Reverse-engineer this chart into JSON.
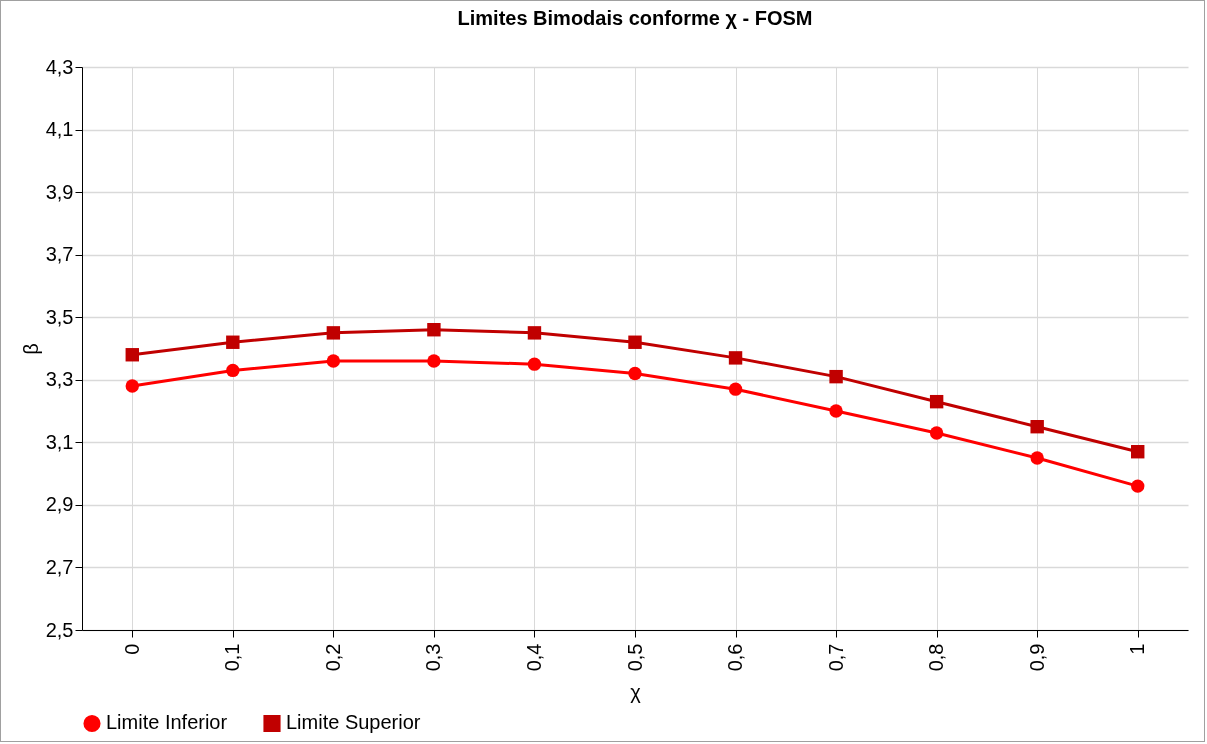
{
  "chart_data": {
    "type": "line",
    "title": "Limites Bimodais conforme χ - FOSM",
    "xlabel": "χ",
    "ylabel": "β",
    "categories": [
      "0",
      "0,1",
      "0,2",
      "0,3",
      "0,4",
      "0,5",
      "0,6",
      "0,7",
      "0,8",
      "0,9",
      "1"
    ],
    "series": [
      {
        "name": "Limite Inferior",
        "color": "#ff0000",
        "marker": "circle",
        "values": [
          3.28,
          3.33,
          3.36,
          3.36,
          3.35,
          3.32,
          3.27,
          3.2,
          3.13,
          3.05,
          2.96
        ]
      },
      {
        "name": "Limite Superior",
        "color": "#c00000",
        "marker": "square",
        "values": [
          3.38,
          3.42,
          3.45,
          3.46,
          3.45,
          3.42,
          3.37,
          3.31,
          3.23,
          3.15,
          3.07
        ]
      }
    ],
    "ylim": [
      2.5,
      4.3
    ],
    "yticks": [
      {
        "value": 2.5,
        "label": "2,5"
      },
      {
        "value": 2.7,
        "label": "2,7"
      },
      {
        "value": 2.9,
        "label": "2,9"
      },
      {
        "value": 3.1,
        "label": "3,1"
      },
      {
        "value": 3.3,
        "label": "3,3"
      },
      {
        "value": 3.5,
        "label": "3,5"
      },
      {
        "value": 3.7,
        "label": "3,7"
      },
      {
        "value": 3.9,
        "label": "3,9"
      },
      {
        "value": 4.1,
        "label": "4,1"
      },
      {
        "value": 4.3,
        "label": "4,3"
      }
    ],
    "grid": true,
    "legend": "bottom",
    "line_style": "solid"
  }
}
